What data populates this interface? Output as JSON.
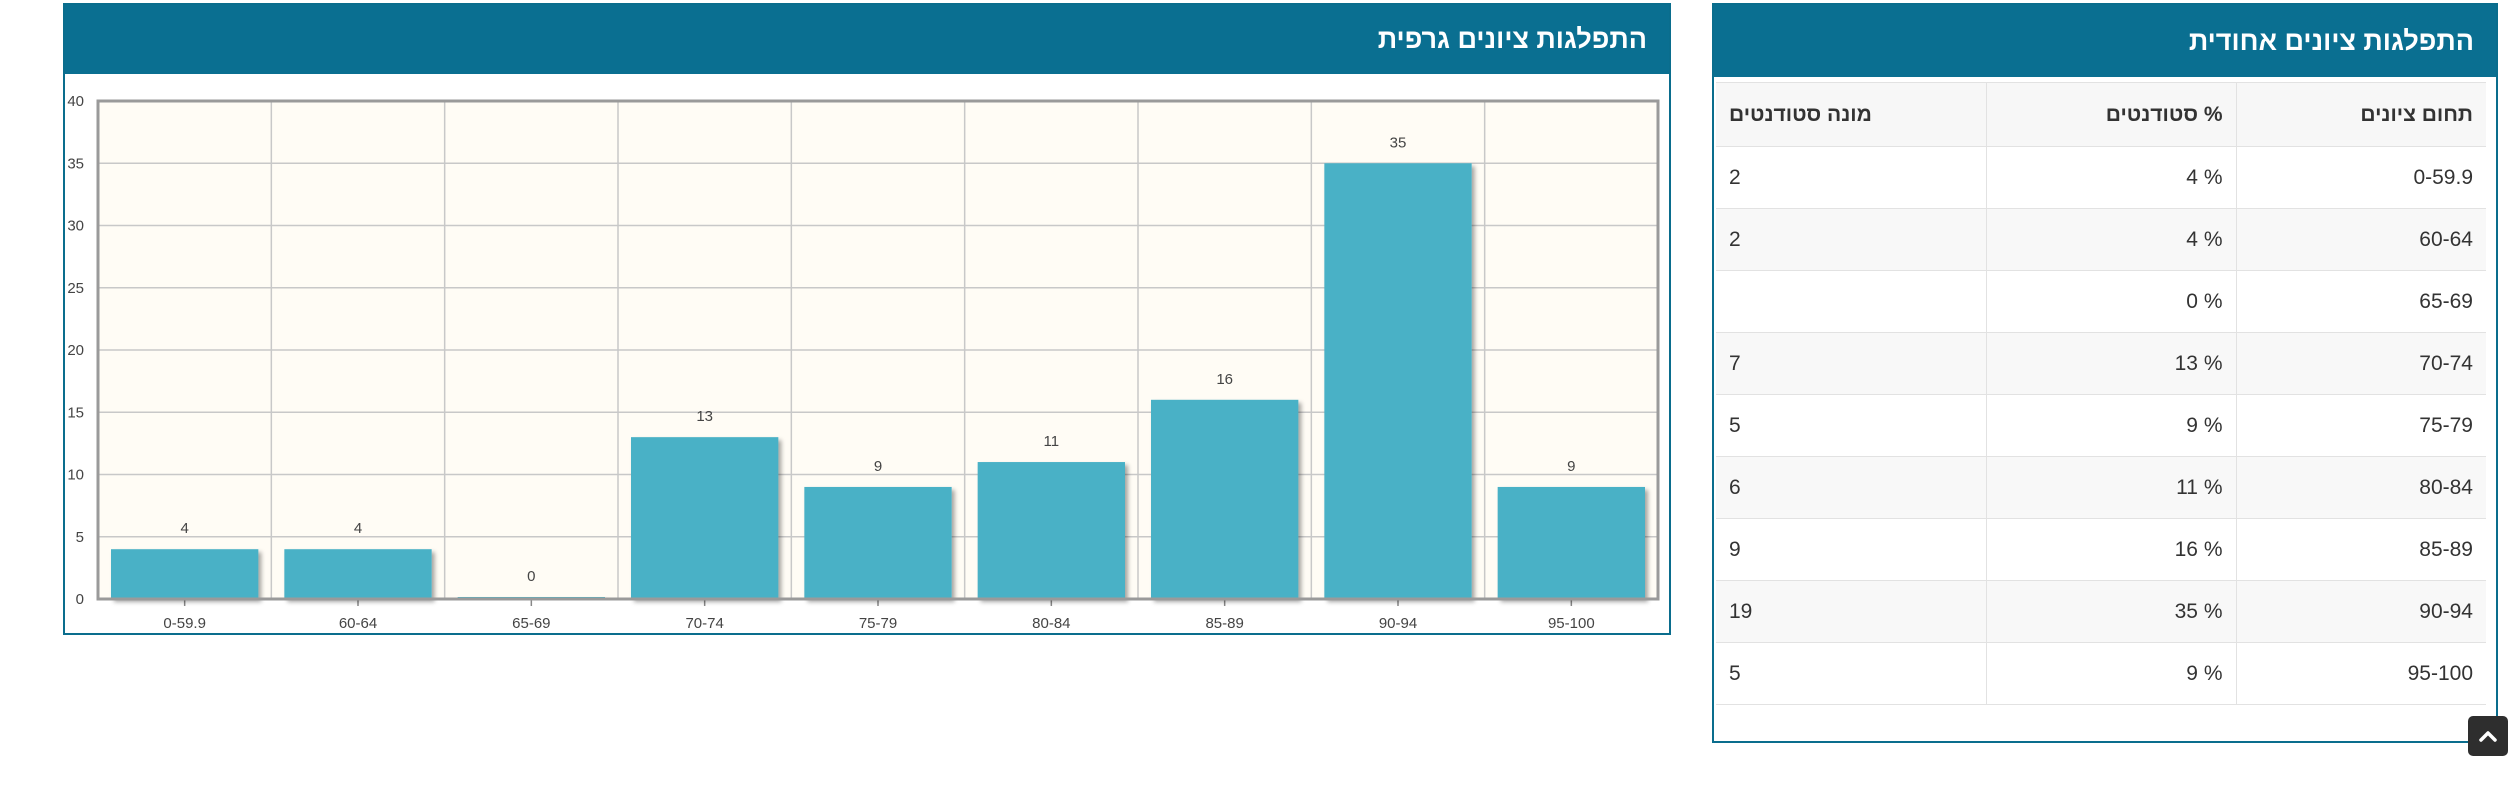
{
  "chart_panel": {
    "title": "התפלגות ציונים גרפית"
  },
  "table_panel": {
    "title": "התפלגות ציונים אחודית",
    "columns": {
      "range": "תחום ציונים",
      "percent": "% סטודנטים",
      "count": "מונה סטודנטים"
    },
    "rows": [
      {
        "range": "0-59.9",
        "percent": "% 4",
        "count": "2"
      },
      {
        "range": "60-64",
        "percent": "% 4",
        "count": "2"
      },
      {
        "range": "65-69",
        "percent": "% 0",
        "count": ""
      },
      {
        "range": "70-74",
        "percent": "% 13",
        "count": "7"
      },
      {
        "range": "75-79",
        "percent": "% 9",
        "count": "5"
      },
      {
        "range": "80-84",
        "percent": "% 11",
        "count": "6"
      },
      {
        "range": "85-89",
        "percent": "% 16",
        "count": "9"
      },
      {
        "range": "90-94",
        "percent": "% 35",
        "count": "19"
      },
      {
        "range": "95-100",
        "percent": "% 9",
        "count": "5"
      }
    ]
  },
  "chart_data": {
    "type": "bar",
    "title": "התפלגות ציונים גרפית",
    "categories": [
      "0-59.9",
      "60-64",
      "65-69",
      "70-74",
      "75-79",
      "80-84",
      "85-89",
      "90-94",
      "95-100"
    ],
    "values": [
      4,
      4,
      0,
      13,
      9,
      11,
      16,
      35,
      9
    ],
    "y_ticks": [
      0,
      5,
      10,
      15,
      20,
      25,
      30,
      35,
      40
    ],
    "ylim": [
      0,
      40
    ],
    "bar_color": "#4ab1c6",
    "plot_bg": "#fffcf5",
    "grid": true
  },
  "scroll_top_icon": "chevron-up-icon"
}
